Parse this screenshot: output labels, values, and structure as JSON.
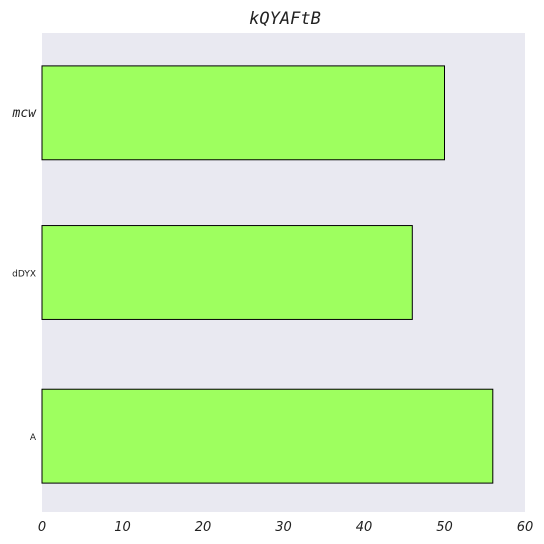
{
  "chart_data": {
    "type": "bar",
    "orientation": "horizontal",
    "title": "kQYAFtB",
    "xlabel": "",
    "ylabel": "",
    "categories": [
      "mcw",
      "dDYX",
      "A"
    ],
    "values": [
      50,
      46,
      56
    ],
    "xlim": [
      0,
      60
    ],
    "xticks": [
      0,
      10,
      20,
      30,
      40,
      50,
      60
    ],
    "grid": false,
    "bar_color": "#9eff5f",
    "bar_edge_color": "#000000",
    "plot_background": "#e9e9f1"
  }
}
